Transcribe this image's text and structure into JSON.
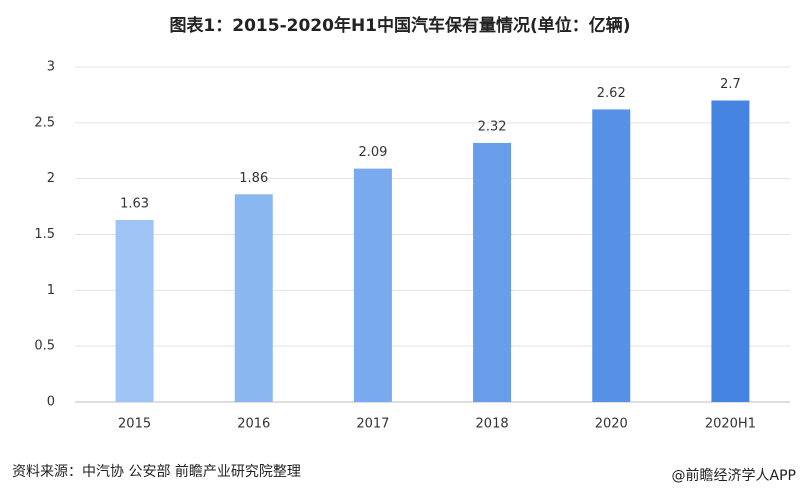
{
  "chart_data": {
    "type": "bar",
    "title": "图表1：2015-2020年H1中国汽车保有量情况(单位：亿辆)",
    "categories": [
      "2015",
      "2016",
      "2017",
      "2018",
      "2020",
      "2020H1"
    ],
    "values": [
      1.63,
      1.86,
      2.09,
      2.32,
      2.62,
      2.7
    ],
    "colors": [
      "#9ec4f6",
      "#8bb7f1",
      "#79aaed",
      "#689ee9",
      "#5691e5",
      "#4585e1"
    ],
    "ylim": [
      0,
      3
    ],
    "yticks": [
      0,
      0.5,
      1,
      1.5,
      2,
      2.5,
      3
    ],
    "grid": true,
    "source": "资料来源：中汽协 公安部 前瞻产业研究院整理",
    "credit": "@前瞻经济学人APP"
  }
}
